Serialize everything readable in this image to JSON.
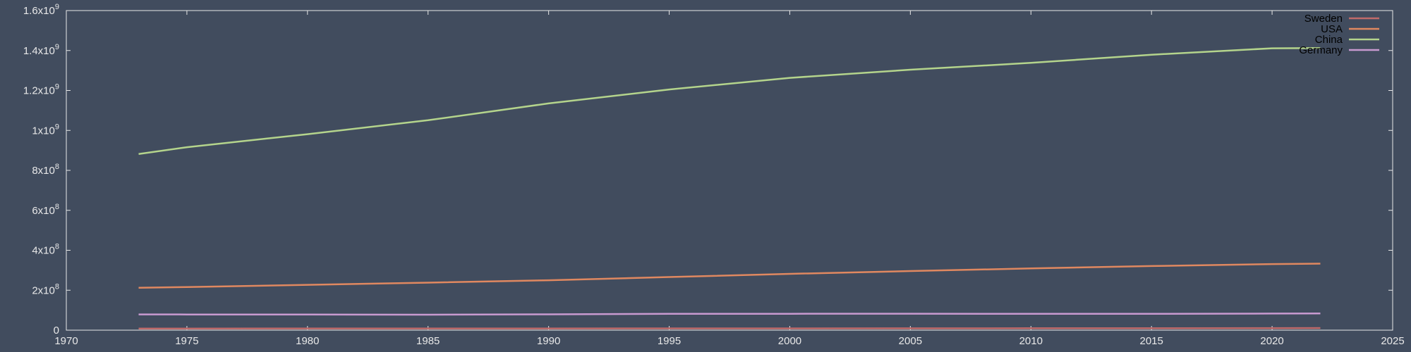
{
  "chart_data": {
    "type": "line",
    "title": "",
    "xlabel": "",
    "ylabel": "",
    "xlim": [
      1970,
      2025
    ],
    "ylim": [
      0,
      1600000000
    ],
    "grid": false,
    "legend_position": "top-right",
    "x_ticks": [
      1970,
      1975,
      1980,
      1985,
      1990,
      1995,
      2000,
      2005,
      2010,
      2015,
      2020,
      2025
    ],
    "x_tick_labels": [
      "1970",
      "1975",
      "1980",
      "1985",
      "1990",
      "1995",
      "2000",
      "2005",
      "2010",
      "2015",
      "2020",
      "2025"
    ],
    "y_ticks": [
      {
        "value": 0,
        "mantissa": "0",
        "exponent": ""
      },
      {
        "value": 200000000,
        "mantissa": "2x10",
        "exponent": "8"
      },
      {
        "value": 400000000,
        "mantissa": "4x10",
        "exponent": "8"
      },
      {
        "value": 600000000,
        "mantissa": "6x10",
        "exponent": "8"
      },
      {
        "value": 800000000,
        "mantissa": "8x10",
        "exponent": "8"
      },
      {
        "value": 1000000000,
        "mantissa": "1x10",
        "exponent": "9"
      },
      {
        "value": 1200000000,
        "mantissa": "1.2x10",
        "exponent": "9"
      },
      {
        "value": 1400000000,
        "mantissa": "1.4x10",
        "exponent": "9"
      },
      {
        "value": 1600000000,
        "mantissa": "1.6x10",
        "exponent": "9"
      }
    ],
    "x": [
      1973,
      1975,
      1980,
      1985,
      1990,
      1995,
      2000,
      2005,
      2010,
      2015,
      2020,
      2022
    ],
    "series": [
      {
        "name": "Sweden",
        "color": "#c06a6a",
        "values": [
          8140000,
          8190000,
          8310000,
          8350000,
          8560000,
          8830000,
          8870000,
          9030000,
          9380000,
          9800000,
          10350000,
          10490000
        ]
      },
      {
        "name": "USA",
        "color": "#e08860",
        "values": [
          212000000,
          216000000,
          227000000,
          238000000,
          250000000,
          266000000,
          282000000,
          296000000,
          309000000,
          321000000,
          331000000,
          333000000
        ]
      },
      {
        "name": "China",
        "color": "#b4d48c",
        "values": [
          882000000,
          916000000,
          981000000,
          1051000000,
          1135000000,
          1205000000,
          1263000000,
          1304000000,
          1338000000,
          1379000000,
          1411000000,
          1412000000
        ]
      },
      {
        "name": "Germany",
        "color": "#c89ad0",
        "values": [
          78900000,
          78700000,
          78300000,
          77700000,
          79400000,
          81700000,
          82200000,
          82500000,
          81800000,
          81700000,
          83200000,
          83800000
        ]
      }
    ]
  }
}
